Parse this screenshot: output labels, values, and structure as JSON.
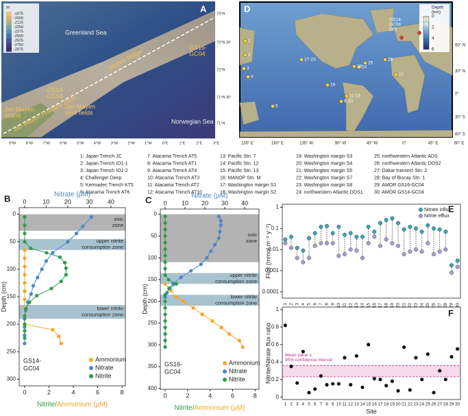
{
  "map_a": {
    "panel_label": "A",
    "depth_unit": "m",
    "depth_scale": [
      -1875,
      -2000,
      -2125,
      -2250,
      -2375,
      -2500,
      -2625,
      -2750,
      -2875
    ],
    "lat_ticks": [
      "73°N",
      "72°N 30'",
      "72°N",
      "71°N 30'",
      "71°N"
    ],
    "lon_ticks": [
      "9°W",
      "8°W",
      "7°W",
      "6°W",
      "5°W",
      "4°W",
      "3°W",
      "2°W",
      "1°W",
      "0°E",
      "1°E",
      "2°E",
      "3°E"
    ],
    "places": [
      [
        "Greenland Sea"
      ],
      [
        "Norwegian Sea"
      ],
      [
        "Mohns Ridge"
      ],
      [
        "GS16-",
        "GC04"
      ],
      [
        "GS14-",
        "GC04"
      ],
      [
        "Jan Mayen",
        "Island"
      ],
      [
        "Jan Mayen",
        "vent fields"
      ],
      [
        "Jan Mayen Fracture Zone"
      ]
    ]
  },
  "map_d": {
    "panel_label": "D",
    "colorbar_title": [
      "Depth",
      "(km)"
    ],
    "colorbar_ticks": [
      0,
      2,
      4,
      6
    ],
    "lat_ticks": [
      "60° N",
      "30° N",
      "0°",
      "30° S",
      "60° S"
    ],
    "lon_ticks": [
      "135° E",
      "180° E",
      "135° W",
      "90° W",
      "45° W",
      "0°",
      "45° E",
      "90° E"
    ],
    "sites": [
      [
        "1"
      ],
      [
        "2"
      ],
      [
        "3"
      ],
      [
        "4"
      ],
      [
        "5"
      ],
      [
        "6-10"
      ],
      [
        "11-15"
      ],
      [
        "16"
      ],
      [
        "17-23"
      ],
      [
        "24"
      ],
      [
        "25"
      ],
      [
        "26"
      ],
      [
        "27"
      ],
      [
        "28"
      ],
      [
        "GS14-",
        "GC04",
        "(30)"
      ],
      [
        "GS16-",
        "GC04",
        "(29)"
      ]
    ]
  },
  "site_list": [
    "1: Japan Trench JC",
    "2: Japan Trench IO1-1",
    "3: Japan Trench IO1-2",
    "4: Challenger Deep",
    "5: Kermadec Trench KT5",
    "6: Atacama Trench AT6",
    "7: Atacama Trench AT5",
    "8: Atacama Trench AT1",
    "9: Atacama Trench AT4",
    "10: Atacama Trench AT3",
    "11: Atacama Trench AT2",
    "12: Atacama Trench AT10",
    "13: Pacific Stn. 7",
    "14: Pacific Stn. 12",
    "15: Pacific Stn. 13",
    "16: MANOP Stn. M",
    "17: Washington margin S1",
    "18: Washington margin S2",
    "19: Washington margin S3",
    "20: Washington margin S4",
    "21: Washington margin S5",
    "22: Washington margin S7",
    "23: Washington margin S8",
    "24: northwestern Atlantic DOS1",
    "25: northwestern Atlantic ADS",
    "26: northwestern Atlantic DOS2",
    "27: Dakar transect Stn. 2",
    "28: Bay of Biscay Stn. 1",
    "29: AMOR GS16-GC04",
    "30: AMOR GS14-GC04"
  ],
  "chart_data": [
    {
      "type": "profile",
      "panel_label": "B",
      "core_label": [
        "GS14-",
        "GC04"
      ],
      "y_label": "Depth (cm)",
      "x2_label": "Nitrate (µM)",
      "x_label_parts": [
        "Nitrite/",
        "Ammonium (µM)"
      ],
      "x_label_colors": [
        "#2e9b4e",
        "#f5a623"
      ],
      "ylim": [
        -12,
        312
      ],
      "yticks": [
        0,
        50,
        100,
        150,
        200,
        250,
        300
      ],
      "xlim": [
        -0.45,
        8.28
      ],
      "xticks": [
        0,
        2,
        4,
        6,
        8
      ],
      "x2lim": [
        -2.5,
        46.7
      ],
      "x2ticks": [
        0,
        10,
        20,
        30,
        40
      ],
      "legend": "bottom-right",
      "zones": [
        {
          "label": [
            "oxic",
            "zone"
          ],
          "range": [
            0,
            30
          ],
          "color": "#b3b3b3"
        },
        {
          "label": [
            "upper nitrite",
            "consumption zone"
          ],
          "range": [
            45,
            65
          ],
          "color": "#a9c2d0"
        },
        {
          "label": [
            "lower nitrite",
            "consumption zone"
          ],
          "range": [
            165,
            190
          ],
          "color": "#a9c2d0"
        }
      ],
      "series": [
        {
          "name": "Ammonium",
          "color": "#f5a623",
          "depth": [
            65,
            80,
            95,
            110,
            125,
            140,
            155,
            170,
            185,
            200,
            210,
            222,
            235
          ],
          "values": [
            0,
            0,
            0,
            0,
            0,
            0,
            0,
            0,
            0,
            0,
            2.3,
            2.8,
            3.0
          ]
        },
        {
          "name": "Nitrate",
          "color": "#4a86c8",
          "axis": "x2",
          "depth": [
            5,
            22,
            35,
            50,
            70,
            85,
            100,
            115,
            130,
            145,
            160,
            175,
            190,
            205,
            220,
            235
          ],
          "values": [
            31,
            27,
            24,
            20,
            13,
            10,
            8,
            6,
            4,
            3,
            1.5,
            0.5,
            0,
            0,
            0,
            0
          ]
        },
        {
          "name": "Nitrite",
          "color": "#2e9b4e",
          "depth": [
            5,
            20,
            35,
            50,
            62,
            70,
            78,
            88,
            98,
            110,
            122,
            135,
            148,
            160,
            172,
            185,
            200,
            212,
            225
          ],
          "values": [
            0,
            0,
            0,
            0,
            0.5,
            1.8,
            2.9,
            3.3,
            3.4,
            3.4,
            3.0,
            2.2,
            1.0,
            0.4,
            0.1,
            0,
            0,
            0,
            0
          ]
        }
      ]
    },
    {
      "type": "profile",
      "panel_label": "C",
      "core_label": [
        "GS16-",
        "GC04"
      ],
      "y_label": "Depth (cm)",
      "x2_label": "Nitrate (µM)",
      "x_label_parts": [
        "Nitrite/",
        "Ammonium (µM)"
      ],
      "x_label_colors": [
        "#2e9b4e",
        "#f5a623"
      ],
      "ylim": [
        -12,
        402
      ],
      "yticks": [
        0,
        50,
        100,
        150,
        200,
        250,
        300,
        350,
        400
      ],
      "xlim": [
        -0.43,
        8.35
      ],
      "xticks": [
        0,
        2,
        4,
        6,
        8
      ],
      "x2lim": [
        -2.4,
        47.2
      ],
      "x2ticks": [
        0,
        10,
        20,
        30,
        40
      ],
      "legend": "bottom-right",
      "zones": [
        {
          "label": [
            "oxic",
            "zone"
          ],
          "range": [
            0,
            110
          ],
          "color": "#b3b3b3"
        },
        {
          "label": [
            "upper nitrite",
            "consumption zone"
          ],
          "range": [
            135,
            160
          ],
          "color": "#a9c2d0"
        },
        {
          "label": [
            "lower nitrite",
            "consumption zone"
          ],
          "range": [
            185,
            210
          ],
          "color": "#a9c2d0"
        }
      ],
      "series": [
        {
          "name": "Ammonium",
          "color": "#f5a623",
          "depth": [
            160,
            175,
            190,
            200,
            215,
            230,
            245,
            260,
            275,
            290,
            305
          ],
          "values": [
            0,
            0.5,
            1.0,
            1.6,
            2.5,
            3.3,
            4.2,
            5,
            5.7,
            6.6,
            6.9
          ]
        },
        {
          "name": "Nitrate",
          "color": "#4a86c8",
          "axis": "x2",
          "depth": [
            5,
            15,
            25,
            40,
            55,
            70,
            85,
            100,
            115,
            130,
            145,
            160,
            170,
            180,
            190
          ],
          "values": [
            27,
            28,
            28,
            27.5,
            27,
            25,
            23,
            21,
            18,
            13,
            8,
            4,
            2,
            1,
            0
          ]
        },
        {
          "name": "Nitrite",
          "color": "#2e9b4e",
          "depth": [
            5,
            20,
            35,
            50,
            65,
            80,
            95,
            110,
            125,
            140,
            150,
            160,
            170,
            185,
            200,
            215,
            230,
            245,
            260,
            275,
            290,
            305
          ],
          "values": [
            0,
            0,
            0,
            0,
            0,
            0,
            0,
            0,
            0,
            0,
            0.3,
            1.0,
            0.4,
            0,
            0,
            0,
            0,
            0,
            0,
            0,
            0,
            0
          ]
        }
      ]
    },
    {
      "type": "paired",
      "panel_label": "E",
      "y_label": "Flux (mmol m⁻² y⁻¹)",
      "log": true,
      "ylim": [
        5e-05,
        1.4
      ],
      "yticks": [
        0.0001,
        0.001,
        0.01,
        0.1,
        1
      ],
      "legend": "top-right",
      "categories": [
        "1",
        "2",
        "3",
        "4",
        "5",
        "6",
        "7",
        "8",
        "9",
        "10",
        "11",
        "12",
        "13",
        "14",
        "15",
        "16",
        "17",
        "18",
        "19",
        "20",
        "21",
        "22",
        "23",
        "24",
        "25",
        "26",
        "27",
        "28",
        "29",
        "30"
      ],
      "series": [
        {
          "name": "Nitrate influx",
          "color": "#3aa5b5",
          "values": [
            0.03,
            0.04,
            0.012,
            0.009,
            0.035,
            0.06,
            0.12,
            0.13,
            0.06,
            0.12,
            0.05,
            0.06,
            0.04,
            0.04,
            0.12,
            0.07,
            0.18,
            0.25,
            0.3,
            0.18,
            0.09,
            0.12,
            0.1,
            0.07,
            0.14,
            0.1,
            0.09,
            0.07,
            0.0018,
            0.003
          ]
        },
        {
          "name": "Nitrite efflux",
          "color": "#a99bd1",
          "values": [
            0.02,
            0.012,
            0.004,
            0.0025,
            0.004,
            0.015,
            0.02,
            0.02,
            0.02,
            0.005,
            0.006,
            0.01,
            0.009,
            0.004,
            0.02,
            0.04,
            0.015,
            0.03,
            0.02,
            0.015,
            0.006,
            0.008,
            0.01,
            0.008,
            0.02,
            0.006,
            0.008,
            0.01,
            0.0008,
            0.0015
          ]
        }
      ]
    },
    {
      "type": "dots",
      "panel_label": "F",
      "y_label": "Nitrite/Nitrate flux ratio",
      "x_label": "Site",
      "ylim": [
        -0.03,
        1.03
      ],
      "yticks": [
        0,
        0.2,
        0.4,
        0.6,
        0.8,
        1
      ],
      "color": "#111111",
      "categories": [
        "1",
        "2",
        "3",
        "4",
        "5",
        "6",
        "7",
        "8",
        "9",
        "10",
        "11",
        "12",
        "13",
        "14",
        "15",
        "16",
        "17",
        "18",
        "19",
        "20",
        "21",
        "22",
        "23",
        "24",
        "25",
        "26",
        "27",
        "28",
        "29",
        "30"
      ],
      "values": [
        0.82,
        0.35,
        0.16,
        0.52,
        0.05,
        0.09,
        0.24,
        0.14,
        0.15,
        0.15,
        0.45,
        0.14,
        0.47,
        0.11,
        0.6,
        0.21,
        0.2,
        0.13,
        0.18,
        0.07,
        0.57,
        0.08,
        0.45,
        0.2,
        0.49,
        0.05,
        0.3,
        0.2,
        0.46,
        0.55
      ],
      "ci_band": [
        0.23,
        0.36
      ],
      "ci_color": "#c0308a",
      "ci_label": [
        "Mean value ±",
        "95% confidence interval"
      ]
    }
  ]
}
